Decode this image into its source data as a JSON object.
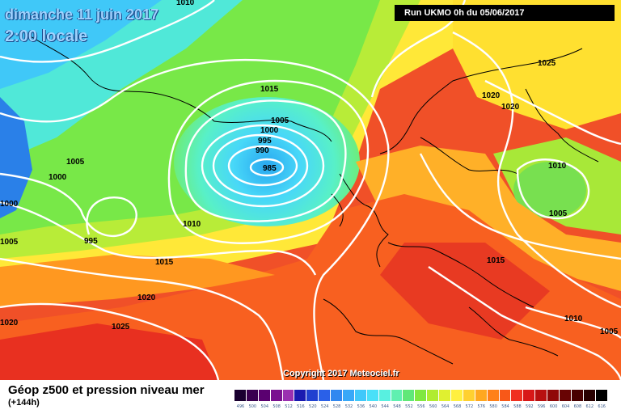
{
  "header": {
    "date": "dimanche 11 juin 2017",
    "time": "2:00 locale",
    "run": "Run UKMO 0h du 05/06/2017"
  },
  "copyright": "Copyright 2017 Meteociel.fr",
  "legend": {
    "title": "Géop z500 et pression niveau mer",
    "subtitle": "(+144h)",
    "scale": [
      {
        "value": "496",
        "color": "#1a0030"
      },
      {
        "value": "500",
        "color": "#3a0050"
      },
      {
        "value": "504",
        "color": "#5a0070"
      },
      {
        "value": "508",
        "color": "#7a1090"
      },
      {
        "value": "512",
        "color": "#9a30b0"
      },
      {
        "value": "516",
        "color": "#1a1ab0"
      },
      {
        "value": "520",
        "color": "#2040d0"
      },
      {
        "value": "524",
        "color": "#2a60e8"
      },
      {
        "value": "528",
        "color": "#3088f0"
      },
      {
        "value": "532",
        "color": "#38a8f8"
      },
      {
        "value": "536",
        "color": "#40c8fa"
      },
      {
        "value": "540",
        "color": "#4ae0f8"
      },
      {
        "value": "544",
        "color": "#58f0e0"
      },
      {
        "value": "548",
        "color": "#60f0b0"
      },
      {
        "value": "552",
        "color": "#60e878"
      },
      {
        "value": "556",
        "color": "#80e840"
      },
      {
        "value": "560",
        "color": "#b0ec30"
      },
      {
        "value": "564",
        "color": "#e0f030"
      },
      {
        "value": "568",
        "color": "#fff040"
      },
      {
        "value": "572",
        "color": "#ffd030"
      },
      {
        "value": "576",
        "color": "#ffa820"
      },
      {
        "value": "580",
        "color": "#ff8018"
      },
      {
        "value": "584",
        "color": "#f85818"
      },
      {
        "value": "588",
        "color": "#f03020"
      },
      {
        "value": "592",
        "color": "#d81818"
      },
      {
        "value": "596",
        "color": "#b81010"
      },
      {
        "value": "600",
        "color": "#900808"
      },
      {
        "value": "604",
        "color": "#680404"
      },
      {
        "value": "608",
        "color": "#480000"
      },
      {
        "value": "612",
        "color": "#280000"
      },
      {
        "value": "616",
        "color": "#000000"
      }
    ]
  },
  "isobar_labels": [
    {
      "text": "1010",
      "id": "top"
    },
    {
      "text": "1025",
      "id": "scand"
    },
    {
      "text": "1020",
      "id": "norway-a"
    },
    {
      "text": "1020",
      "id": "norway-b"
    },
    {
      "text": "1015",
      "id": "iceland"
    },
    {
      "text": "1005",
      "id": "low-5"
    },
    {
      "text": "1000",
      "id": "low-4"
    },
    {
      "text": "995",
      "id": "low-3"
    },
    {
      "text": "990",
      "id": "low-2"
    },
    {
      "text": "985",
      "id": "low-1"
    },
    {
      "text": "1005",
      "id": "west-a"
    },
    {
      "text": "1000",
      "id": "west-b"
    },
    {
      "text": "1000",
      "id": "west-edge"
    },
    {
      "text": "1005",
      "id": "west-edge2"
    },
    {
      "text": "995",
      "id": "sw-low"
    },
    {
      "text": "1010",
      "id": "atl"
    },
    {
      "text": "1015",
      "id": "atl2"
    },
    {
      "text": "1020",
      "id": "atl3"
    },
    {
      "text": "1020",
      "id": "sw-edge"
    },
    {
      "text": "1025",
      "id": "azores"
    },
    {
      "text": "1010",
      "id": "baltic"
    },
    {
      "text": "1005",
      "id": "poland"
    },
    {
      "text": "1015",
      "id": "balkans"
    },
    {
      "text": "1010",
      "id": "greece"
    },
    {
      "text": "1005",
      "id": "turkey"
    }
  ]
}
